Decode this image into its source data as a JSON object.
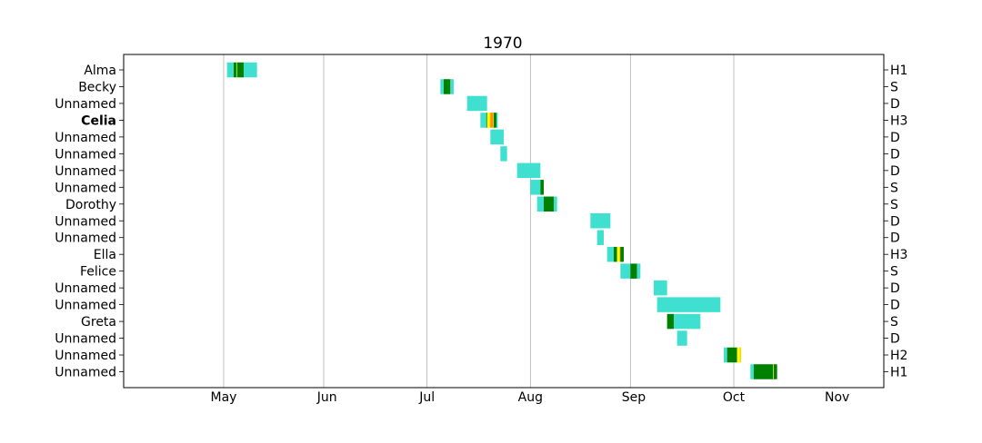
{
  "chart_data": {
    "type": "timeline",
    "title": "1970",
    "xlabel": "",
    "ylabel": "",
    "x_range": [
      "1970-04-16",
      "1970-11-30"
    ],
    "month_ticks": [
      {
        "label": "May",
        "date": "1970-05-01"
      },
      {
        "label": "Jun",
        "date": "1970-06-01"
      },
      {
        "label": "Jul",
        "date": "1970-07-01"
      },
      {
        "label": "Aug",
        "date": "1970-08-01"
      },
      {
        "label": "Sep",
        "date": "1970-09-01"
      },
      {
        "label": "Oct",
        "date": "1970-10-01"
      },
      {
        "label": "Nov",
        "date": "1970-11-01"
      }
    ],
    "gridlines": [
      "1970-05-16",
      "1970-06-15",
      "1970-07-16",
      "1970-08-16",
      "1970-09-15",
      "1970-10-16"
    ],
    "category_colors": {
      "D": "#40e0d0",
      "S": "#008000",
      "H1": "#ffff00",
      "H2": "#ffd700",
      "H3": "#ff8c00",
      "H4": "#ff0000",
      "X": "#000000"
    },
    "storms": [
      {
        "name": "Alma",
        "bold": false,
        "max_category": "H1",
        "segments": [
          {
            "start": "1970-05-17",
            "end": "1970-05-19",
            "cat": "D"
          },
          {
            "start": "1970-05-19",
            "end": "1970-05-20",
            "cat": "S"
          },
          {
            "start": "1970-05-20",
            "end": "1970-05-20",
            "cat": "H1"
          },
          {
            "start": "1970-05-20",
            "end": "1970-05-22",
            "cat": "S"
          },
          {
            "start": "1970-05-22",
            "end": "1970-05-26",
            "cat": "D"
          }
        ]
      },
      {
        "name": "Becky",
        "bold": false,
        "max_category": "S",
        "segments": [
          {
            "start": "1970-07-20",
            "end": "1970-07-21",
            "cat": "D"
          },
          {
            "start": "1970-07-21",
            "end": "1970-07-23",
            "cat": "S"
          },
          {
            "start": "1970-07-23",
            "end": "1970-07-24",
            "cat": "D"
          }
        ]
      },
      {
        "name": "Unnamed",
        "bold": false,
        "max_category": "D",
        "segments": [
          {
            "start": "1970-07-28",
            "end": "1970-08-03",
            "cat": "D"
          }
        ]
      },
      {
        "name": "Celia",
        "bold": true,
        "max_category": "H3",
        "segments": [
          {
            "start": "1970-08-01",
            "end": "1970-08-03",
            "cat": "D"
          },
          {
            "start": "1970-08-03",
            "end": "1970-08-03",
            "cat": "S"
          },
          {
            "start": "1970-08-03",
            "end": "1970-08-04",
            "cat": "H1"
          },
          {
            "start": "1970-08-04",
            "end": "1970-08-04",
            "cat": "H2"
          },
          {
            "start": "1970-08-04",
            "end": "1970-08-05",
            "cat": "H3"
          },
          {
            "start": "1970-08-05",
            "end": "1970-08-05",
            "cat": "H2"
          },
          {
            "start": "1970-08-05",
            "end": "1970-08-06",
            "cat": "S"
          },
          {
            "start": "1970-08-06",
            "end": "1970-08-06",
            "cat": "D"
          }
        ]
      },
      {
        "name": "Unnamed",
        "bold": false,
        "max_category": "D",
        "segments": [
          {
            "start": "1970-08-04",
            "end": "1970-08-08",
            "cat": "D"
          }
        ]
      },
      {
        "name": "Unnamed",
        "bold": false,
        "max_category": "D",
        "segments": [
          {
            "start": "1970-08-07",
            "end": "1970-08-09",
            "cat": "D"
          }
        ]
      },
      {
        "name": "Unnamed",
        "bold": false,
        "max_category": "D",
        "segments": [
          {
            "start": "1970-08-12",
            "end": "1970-08-19",
            "cat": "D"
          }
        ]
      },
      {
        "name": "Unnamed",
        "bold": false,
        "max_category": "S",
        "segments": [
          {
            "start": "1970-08-16",
            "end": "1970-08-19",
            "cat": "D"
          },
          {
            "start": "1970-08-19",
            "end": "1970-08-20",
            "cat": "S"
          }
        ]
      },
      {
        "name": "Dorothy",
        "bold": false,
        "max_category": "S",
        "segments": [
          {
            "start": "1970-08-18",
            "end": "1970-08-20",
            "cat": "D"
          },
          {
            "start": "1970-08-20",
            "end": "1970-08-23",
            "cat": "S"
          },
          {
            "start": "1970-08-23",
            "end": "1970-08-24",
            "cat": "D"
          }
        ]
      },
      {
        "name": "Unnamed",
        "bold": false,
        "max_category": "D",
        "segments": [
          {
            "start": "1970-09-03",
            "end": "1970-09-09",
            "cat": "D"
          }
        ]
      },
      {
        "name": "Unnamed",
        "bold": false,
        "max_category": "D",
        "segments": [
          {
            "start": "1970-09-05",
            "end": "1970-09-07",
            "cat": "D"
          }
        ]
      },
      {
        "name": "Ella",
        "bold": false,
        "max_category": "H3",
        "segments": [
          {
            "start": "1970-09-08",
            "end": "1970-09-10",
            "cat": "D"
          },
          {
            "start": "1970-09-10",
            "end": "1970-09-11",
            "cat": "S"
          },
          {
            "start": "1970-09-11",
            "end": "1970-09-12",
            "cat": "H1"
          },
          {
            "start": "1970-09-12",
            "end": "1970-09-12",
            "cat": "H3"
          },
          {
            "start": "1970-09-12",
            "end": "1970-09-13",
            "cat": "S"
          }
        ]
      },
      {
        "name": "Felice",
        "bold": false,
        "max_category": "S",
        "segments": [
          {
            "start": "1970-09-12",
            "end": "1970-09-15",
            "cat": "D"
          },
          {
            "start": "1970-09-15",
            "end": "1970-09-17",
            "cat": "S"
          },
          {
            "start": "1970-09-17",
            "end": "1970-09-18",
            "cat": "D"
          }
        ]
      },
      {
        "name": "Unnamed",
        "bold": false,
        "max_category": "D",
        "segments": [
          {
            "start": "1970-09-22",
            "end": "1970-09-26",
            "cat": "D"
          }
        ]
      },
      {
        "name": "Unnamed",
        "bold": false,
        "max_category": "D",
        "segments": [
          {
            "start": "1970-09-23",
            "end": "1970-10-12",
            "cat": "D"
          }
        ]
      },
      {
        "name": "Greta",
        "bold": false,
        "max_category": "S",
        "segments": [
          {
            "start": "1970-09-26",
            "end": "1970-09-28",
            "cat": "S"
          },
          {
            "start": "1970-09-28",
            "end": "1970-10-06",
            "cat": "D"
          }
        ]
      },
      {
        "name": "Unnamed",
        "bold": false,
        "max_category": "D",
        "segments": [
          {
            "start": "1970-09-29",
            "end": "1970-10-02",
            "cat": "D"
          }
        ]
      },
      {
        "name": "Unnamed",
        "bold": false,
        "max_category": "H2",
        "segments": [
          {
            "start": "1970-10-13",
            "end": "1970-10-14",
            "cat": "D"
          },
          {
            "start": "1970-10-14",
            "end": "1970-10-17",
            "cat": "S"
          },
          {
            "start": "1970-10-17",
            "end": "1970-10-18",
            "cat": "H1"
          },
          {
            "start": "1970-10-18",
            "end": "1970-10-18",
            "cat": "H2"
          }
        ]
      },
      {
        "name": "Unnamed",
        "bold": false,
        "max_category": "H1",
        "segments": [
          {
            "start": "1970-10-21",
            "end": "1970-10-22",
            "cat": "D"
          },
          {
            "start": "1970-10-22",
            "end": "1970-10-28",
            "cat": "S"
          },
          {
            "start": "1970-10-28",
            "end": "1970-10-28",
            "cat": "H1"
          },
          {
            "start": "1970-10-28",
            "end": "1970-10-29",
            "cat": "S"
          }
        ]
      }
    ]
  }
}
